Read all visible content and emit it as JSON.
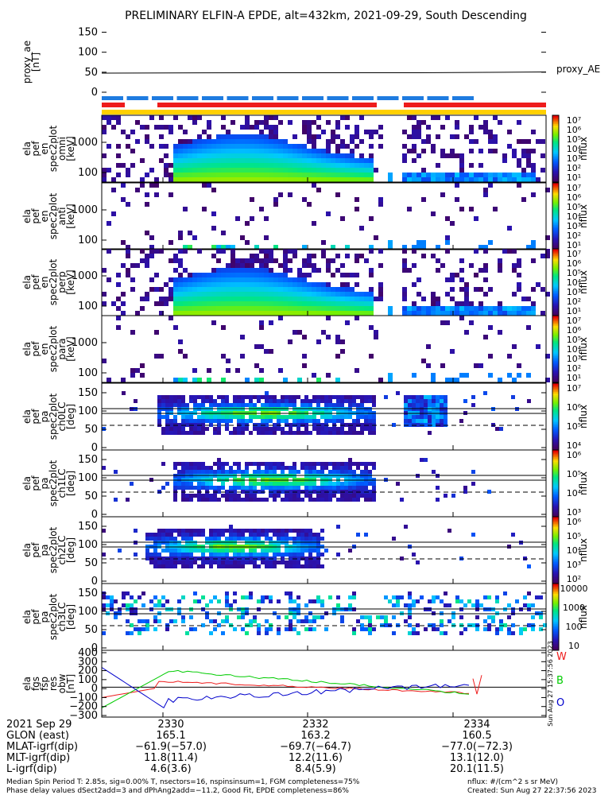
{
  "title": "PRELIMINARY ELFIN-A EPDE, alt=432km, 2021-09-29, South Descending",
  "panels": {
    "ae": {
      "ylabel_lines": [
        "proxy_ae",
        "[nT]"
      ],
      "ticks": [
        "150",
        "100",
        "50",
        "0"
      ],
      "legend": "proxy_AE"
    },
    "spec": [
      {
        "ylabel_lines": [
          "ela",
          "pef",
          "en",
          "spec2plot",
          "omni",
          "[keV]"
        ],
        "ticks": [
          "1000",
          "100"
        ],
        "cbar_ticks": [
          "10⁷",
          "10⁶",
          "10⁵",
          "10⁴",
          "10³",
          "10²",
          "10¹"
        ],
        "cbar_label": "nflux"
      },
      {
        "ylabel_lines": [
          "ela",
          "pef",
          "en",
          "spec2plot",
          "anti",
          "[keV]"
        ],
        "ticks": [
          "1000",
          "100"
        ],
        "cbar_ticks": [
          "10⁷",
          "10⁶",
          "10⁵",
          "10⁴",
          "10³",
          "10²",
          "10¹"
        ],
        "cbar_label": "nflux"
      },
      {
        "ylabel_lines": [
          "ela",
          "pef",
          "en",
          "spec2plot",
          "perp",
          "[keV]"
        ],
        "ticks": [
          "1000",
          "100"
        ],
        "cbar_ticks": [
          "10⁷",
          "10⁶",
          "10⁵",
          "10⁴",
          "10³",
          "10²",
          "10¹"
        ],
        "cbar_label": "nflux"
      },
      {
        "ylabel_lines": [
          "ela",
          "pef",
          "en",
          "spec2plot",
          "para",
          "[keV]"
        ],
        "ticks": [
          "1000",
          "100"
        ],
        "cbar_ticks": [
          "10⁷",
          "10⁶",
          "10⁵",
          "10⁴",
          "10³",
          "10²",
          "10¹"
        ],
        "cbar_label": "nflux"
      }
    ],
    "pa": [
      {
        "ylabel_lines": [
          "ela",
          "pef",
          "pa",
          "spec2plot",
          "ch0LC",
          "[deg]"
        ],
        "ticks": [
          "150",
          "100",
          "50",
          "0"
        ],
        "cbar_ticks": [
          "10⁷",
          "10⁶",
          "10⁵",
          "10⁴"
        ],
        "cbar_label": "nflux"
      },
      {
        "ylabel_lines": [
          "ela",
          "pef",
          "pa",
          "spec2plot",
          "ch1LC",
          "[deg]"
        ],
        "ticks": [
          "150",
          "100",
          "50",
          "0"
        ],
        "cbar_ticks": [
          "10⁶",
          "10⁵",
          "10⁴",
          "10³"
        ],
        "cbar_label": "nflux"
      },
      {
        "ylabel_lines": [
          "ela",
          "pef",
          "pa",
          "spec2plot",
          "ch2LC",
          "[deg]"
        ],
        "ticks": [
          "150",
          "100",
          "50",
          "0"
        ],
        "cbar_ticks": [
          "10⁶",
          "10⁵",
          "10⁴",
          "10³",
          "10²"
        ],
        "cbar_label": "nflux"
      },
      {
        "ylabel_lines": [
          "ela",
          "pef",
          "pa",
          "spec2plot",
          "ch3LC",
          "[deg]"
        ],
        "ticks": [
          "150",
          "100",
          "50",
          "0"
        ],
        "cbar_ticks": [
          "10000",
          "1000",
          "100",
          "10"
        ],
        "cbar_label": "nflux"
      }
    ],
    "res": {
      "ylabel_lines": [
        "ela",
        "fgs",
        "fsp",
        "res",
        "obw",
        "[nT]"
      ],
      "ticks": [
        "400",
        "300",
        "200",
        "100",
        "0",
        "−100",
        "−200",
        "−300"
      ],
      "legend": [
        "W",
        "B",
        "O"
      ],
      "side_note": "Sun Aug 27 15:37:56 2023"
    }
  },
  "footer": {
    "row_labels": [
      "2021 Sep 29",
      "GLON (east)",
      "MLAT-igrf(dip)",
      "MLT-igrf(dip)",
      "L-igrf(dip)"
    ],
    "columns": [
      [
        "2330",
        "165.1",
        "−61.9(−57.0)",
        "11.8(11.4)",
        "4.6(3.6)"
      ],
      [
        "2332",
        "163.2",
        "−69.7(−64.7)",
        "12.2(11.6)",
        "8.4(5.9)"
      ],
      [
        "2334",
        "160.5",
        "−77.0(−72.3)",
        "13.1(12.0)",
        "20.1(11.5)"
      ]
    ],
    "note1": "Median Spin Period T: 2.85s, sig=0.00% T, nsectors=16, nspinsinsum=1, FGM completeness=75%",
    "note2": "Phase delay values dSect2add=3 and dPhAng2add=−11.2, Good Fit, EPDE completeness=86%",
    "units": "nflux: #/(cm^2 s sr MeV)",
    "created": "Created: Sun Aug 27 22:37:56 2023"
  },
  "colors": {
    "blue": "#1e7be0",
    "red": "#ee1c1c",
    "yellow": "#ffd000",
    "green": "#00cc00"
  },
  "chart_data": {
    "type": "heatmap",
    "title": "PRELIMINARY ELFIN-A EPDE, alt=432km, 2021-09-29, South Descending",
    "xlabel": "",
    "x_ticks": [
      "2330",
      "2332",
      "2334"
    ],
    "proxy_ae": {
      "label": "proxy_AE",
      "value": 47,
      "ylim": [
        0,
        150
      ]
    },
    "spectrograms": [
      "omni [keV]",
      "anti [keV]",
      "perp [keV]",
      "para [keV]"
    ],
    "pitch_angle": [
      "ch0LC [deg]",
      "ch1LC [deg]",
      "ch2LC [deg]",
      "ch3LC [deg]"
    ],
    "res_obw": {
      "ylim": [
        -300,
        400
      ],
      "series": [
        {
          "name": "W",
          "color": "#ee1c1c"
        },
        {
          "name": "B",
          "color": "#00cc00"
        },
        {
          "name": "O",
          "color": "#0000cc"
        }
      ]
    }
  }
}
